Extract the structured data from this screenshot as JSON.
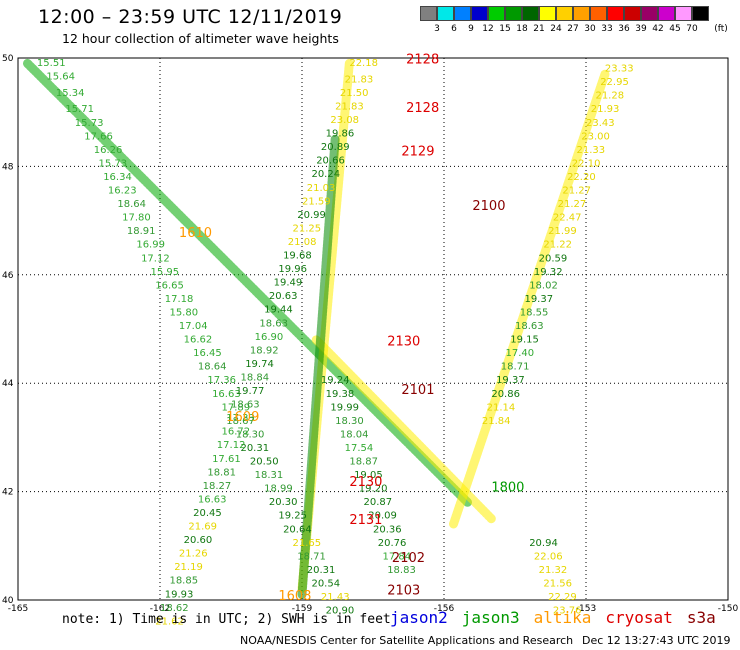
{
  "header": {
    "title": "12:00 – 23:59 UTC 12/11/2019",
    "subtitle": "12 hour collection of altimeter wave heights"
  },
  "colorbar": {
    "unit_label": "(ft)",
    "levels": [
      "3",
      "6",
      "9",
      "12",
      "15",
      "18",
      "21",
      "24",
      "27",
      "30",
      "33",
      "36",
      "39",
      "42",
      "45",
      "70"
    ],
    "colors": [
      "#808080",
      "#00e8e8",
      "#0080ff",
      "#0000cc",
      "#00cc00",
      "#009900",
      "#006600",
      "#ffff00",
      "#ffd000",
      "#ffa000",
      "#ff6000",
      "#ff0000",
      "#cc0000",
      "#990066",
      "#cc00cc",
      "#ff99ff",
      "#000000"
    ]
  },
  "chart_data": {
    "type": "scatter",
    "xlim": [
      -165,
      -150
    ],
    "ylim": [
      40,
      50
    ],
    "x_ticks": [
      "-165",
      "-162",
      "-159",
      "-156",
      "-153",
      "-150"
    ],
    "y_ticks": [
      "40",
      "42",
      "44",
      "46",
      "48",
      "50"
    ],
    "tracks": [
      {
        "satellite": "jason3",
        "lon_start": -164.8,
        "lat_start": 49.9,
        "lon_end": -155.5,
        "lat_end": 41.8,
        "color": "#00aa00"
      },
      {
        "satellite": "altika",
        "lon_start": -158.7,
        "lat_start": 44.8,
        "lon_end": -155.0,
        "lat_end": 41.5,
        "color": "#ffee00"
      },
      {
        "satellite": "altika",
        "lon_start": -152.6,
        "lat_start": 49.7,
        "lon_end": -155.8,
        "lat_end": 41.4,
        "color": "#ffee00"
      },
      {
        "satellite": "altika",
        "lon_start": -158.0,
        "lat_start": 49.9,
        "lon_end": -159.0,
        "lat_end": 40.2,
        "color": "#ffee00"
      },
      {
        "satellite": "jason3",
        "lon_start": -158.3,
        "lat_start": 48.5,
        "lon_end": -159.0,
        "lat_end": 40.1,
        "color": "#008800"
      }
    ],
    "swh_labels": [
      {
        "lon": -164.6,
        "lat": 49.85,
        "text": "15.51",
        "color": "#33aa33"
      },
      {
        "lon": -164.4,
        "lat": 49.6,
        "text": "15.64",
        "color": "#33aa33"
      },
      {
        "lon": -164.2,
        "lat": 49.3,
        "text": "15.34",
        "color": "#33aa33"
      },
      {
        "lon": -164.0,
        "lat": 49.0,
        "text": "15.71",
        "color": "#33aa33"
      },
      {
        "lon": -163.8,
        "lat": 48.75,
        "text": "15.73",
        "color": "#33aa33"
      },
      {
        "lon": -163.6,
        "lat": 48.5,
        "text": "17.66",
        "color": "#33aa33"
      },
      {
        "lon": -163.4,
        "lat": 48.25,
        "text": "16.26",
        "color": "#33aa33"
      },
      {
        "lon": -163.3,
        "lat": 48.0,
        "text": "15.73",
        "color": "#33aa33"
      },
      {
        "lon": -163.2,
        "lat": 47.75,
        "text": "16.34",
        "color": "#33aa33"
      },
      {
        "lon": -163.1,
        "lat": 47.5,
        "text": "16.23",
        "color": "#33aa33"
      },
      {
        "lon": -162.9,
        "lat": 47.25,
        "text": "18.64",
        "color": "#339933"
      },
      {
        "lon": -162.8,
        "lat": 47.0,
        "text": "17.80",
        "color": "#33aa33"
      },
      {
        "lon": -162.7,
        "lat": 46.75,
        "text": "18.91",
        "color": "#339933"
      },
      {
        "lon": -162.5,
        "lat": 46.5,
        "text": "16.99",
        "color": "#33aa33"
      },
      {
        "lon": -162.4,
        "lat": 46.25,
        "text": "17.12",
        "color": "#33aa33"
      },
      {
        "lon": -162.2,
        "lat": 46.0,
        "text": "15.95",
        "color": "#33aa33"
      },
      {
        "lon": -162.1,
        "lat": 45.75,
        "text": "16.65",
        "color": "#33aa33"
      },
      {
        "lon": -161.9,
        "lat": 45.5,
        "text": "17.18",
        "color": "#33aa33"
      },
      {
        "lon": -161.8,
        "lat": 45.25,
        "text": "15.80",
        "color": "#33aa33"
      },
      {
        "lon": -161.6,
        "lat": 45.0,
        "text": "17.04",
        "color": "#33aa33"
      },
      {
        "lon": -161.5,
        "lat": 44.75,
        "text": "16.62",
        "color": "#33aa33"
      },
      {
        "lon": -161.3,
        "lat": 44.5,
        "text": "16.45",
        "color": "#33aa33"
      },
      {
        "lon": -161.2,
        "lat": 44.25,
        "text": "18.64",
        "color": "#339933"
      },
      {
        "lon": -161.0,
        "lat": 44.0,
        "text": "17.36",
        "color": "#33aa33"
      },
      {
        "lon": -160.9,
        "lat": 43.75,
        "text": "16.63",
        "color": "#33aa33"
      },
      {
        "lon": -160.7,
        "lat": 43.5,
        "text": "17.89",
        "color": "#33aa33"
      },
      {
        "lon": -160.6,
        "lat": 43.25,
        "text": "18.67",
        "color": "#339933"
      },
      {
        "lon": -160.4,
        "lat": 43.0,
        "text": "18.30",
        "color": "#339933"
      },
      {
        "lon": -160.3,
        "lat": 42.75,
        "text": "20.31",
        "color": "#117711"
      },
      {
        "lon": -160.1,
        "lat": 42.5,
        "text": "20.50",
        "color": "#117711"
      },
      {
        "lon": -160.0,
        "lat": 42.25,
        "text": "18.31",
        "color": "#339933"
      },
      {
        "lon": -159.8,
        "lat": 42.0,
        "text": "18.99",
        "color": "#339933"
      },
      {
        "lon": -159.7,
        "lat": 41.75,
        "text": "20.30",
        "color": "#117711"
      },
      {
        "lon": -159.5,
        "lat": 41.5,
        "text": "19.25",
        "color": "#117711"
      },
      {
        "lon": -159.4,
        "lat": 41.25,
        "text": "20.64",
        "color": "#117711"
      },
      {
        "lon": -159.2,
        "lat": 41.0,
        "text": "21.65",
        "color": "#e6d600"
      },
      {
        "lon": -159.1,
        "lat": 40.75,
        "text": "18.71",
        "color": "#339933"
      },
      {
        "lon": -158.9,
        "lat": 40.5,
        "text": "20.31",
        "color": "#117711"
      },
      {
        "lon": -158.8,
        "lat": 40.25,
        "text": "20.54",
        "color": "#117711"
      },
      {
        "lon": -158.6,
        "lat": 40.0,
        "text": "21.43",
        "color": "#e6d600"
      },
      {
        "lon": -158.5,
        "lat": 39.75,
        "text": "20.90",
        "color": "#117711"
      },
      {
        "lon": -158.0,
        "lat": 49.85,
        "text": "22.18",
        "color": "#e6d600"
      },
      {
        "lon": -158.1,
        "lat": 49.55,
        "text": "21.83",
        "color": "#e6d600"
      },
      {
        "lon": -158.2,
        "lat": 49.3,
        "text": "21.50",
        "color": "#e6d600"
      },
      {
        "lon": -158.3,
        "lat": 49.05,
        "text": "21.83",
        "color": "#e6d600"
      },
      {
        "lon": -158.4,
        "lat": 48.8,
        "text": "23.08",
        "color": "#e6d600"
      },
      {
        "lon": -158.5,
        "lat": 48.55,
        "text": "19.86",
        "color": "#117711"
      },
      {
        "lon": -158.6,
        "lat": 48.3,
        "text": "20.89",
        "color": "#117711"
      },
      {
        "lon": -158.7,
        "lat": 48.05,
        "text": "20.66",
        "color": "#117711"
      },
      {
        "lon": -158.8,
        "lat": 47.8,
        "text": "20.24",
        "color": "#117711"
      },
      {
        "lon": -158.9,
        "lat": 47.55,
        "text": "21.03",
        "color": "#e6d600"
      },
      {
        "lon": -159.0,
        "lat": 47.3,
        "text": "21.59",
        "color": "#e6d600"
      },
      {
        "lon": -159.1,
        "lat": 47.05,
        "text": "20.99",
        "color": "#117711"
      },
      {
        "lon": -159.2,
        "lat": 46.8,
        "text": "21.25",
        "color": "#e6d600"
      },
      {
        "lon": -159.3,
        "lat": 46.55,
        "text": "21.08",
        "color": "#e6d600"
      },
      {
        "lon": -159.4,
        "lat": 46.3,
        "text": "19.68",
        "color": "#117711"
      },
      {
        "lon": -159.5,
        "lat": 46.05,
        "text": "19.96",
        "color": "#117711"
      },
      {
        "lon": -159.6,
        "lat": 45.8,
        "text": "19.49",
        "color": "#117711"
      },
      {
        "lon": -159.7,
        "lat": 45.55,
        "text": "20.63",
        "color": "#117711"
      },
      {
        "lon": -159.8,
        "lat": 45.3,
        "text": "19.44",
        "color": "#117711"
      },
      {
        "lon": -159.9,
        "lat": 45.05,
        "text": "18.63",
        "color": "#339933"
      },
      {
        "lon": -160.0,
        "lat": 44.8,
        "text": "16.90",
        "color": "#33aa33"
      },
      {
        "lon": -160.1,
        "lat": 44.55,
        "text": "18.92",
        "color": "#339933"
      },
      {
        "lon": -160.2,
        "lat": 44.3,
        "text": "19.74",
        "color": "#117711"
      },
      {
        "lon": -160.3,
        "lat": 44.05,
        "text": "18.84",
        "color": "#339933"
      },
      {
        "lon": -160.4,
        "lat": 43.8,
        "text": "19.77",
        "color": "#117711"
      },
      {
        "lon": -160.5,
        "lat": 43.55,
        "text": "18.63",
        "color": "#339933"
      },
      {
        "lon": -160.6,
        "lat": 43.3,
        "text": "17.33",
        "color": "#33aa33"
      },
      {
        "lon": -160.7,
        "lat": 43.05,
        "text": "16.72",
        "color": "#33aa33"
      },
      {
        "lon": -160.8,
        "lat": 42.8,
        "text": "17.12",
        "color": "#33aa33"
      },
      {
        "lon": -160.9,
        "lat": 42.55,
        "text": "17.61",
        "color": "#33aa33"
      },
      {
        "lon": -161.0,
        "lat": 42.3,
        "text": "18.81",
        "color": "#339933"
      },
      {
        "lon": -161.1,
        "lat": 42.05,
        "text": "18.27",
        "color": "#339933"
      },
      {
        "lon": -161.2,
        "lat": 41.8,
        "text": "16.63",
        "color": "#33aa33"
      },
      {
        "lon": -161.3,
        "lat": 41.55,
        "text": "20.45",
        "color": "#117711"
      },
      {
        "lon": -161.4,
        "lat": 41.3,
        "text": "21.69",
        "color": "#e6d600"
      },
      {
        "lon": -161.5,
        "lat": 41.05,
        "text": "20.60",
        "color": "#117711"
      },
      {
        "lon": -161.6,
        "lat": 40.8,
        "text": "21.26",
        "color": "#e6d600"
      },
      {
        "lon": -161.7,
        "lat": 40.55,
        "text": "21.19",
        "color": "#e6d600"
      },
      {
        "lon": -161.8,
        "lat": 40.3,
        "text": "18.85",
        "color": "#339933"
      },
      {
        "lon": -161.9,
        "lat": 40.05,
        "text": "19.93",
        "color": "#117711"
      },
      {
        "lon": -162.0,
        "lat": 39.8,
        "text": "18.62",
        "color": "#339933"
      },
      {
        "lon": -162.1,
        "lat": 39.55,
        "text": "21.62",
        "color": "#e6d600"
      },
      {
        "lon": -158.6,
        "lat": 44.0,
        "text": "19.24",
        "color": "#117711"
      },
      {
        "lon": -158.5,
        "lat": 43.75,
        "text": "19.38",
        "color": "#117711"
      },
      {
        "lon": -158.4,
        "lat": 43.5,
        "text": "19.99",
        "color": "#117711"
      },
      {
        "lon": -158.3,
        "lat": 43.25,
        "text": "18.30",
        "color": "#339933"
      },
      {
        "lon": -158.2,
        "lat": 43.0,
        "text": "18.04",
        "color": "#339933"
      },
      {
        "lon": -158.1,
        "lat": 42.75,
        "text": "17.54",
        "color": "#33aa33"
      },
      {
        "lon": -158.0,
        "lat": 42.5,
        "text": "18.87",
        "color": "#339933"
      },
      {
        "lon": -157.9,
        "lat": 42.25,
        "text": "19.05",
        "color": "#117711"
      },
      {
        "lon": -157.8,
        "lat": 42.0,
        "text": "19.20",
        "color": "#117711"
      },
      {
        "lon": -157.7,
        "lat": 41.75,
        "text": "20.87",
        "color": "#117711"
      },
      {
        "lon": -157.6,
        "lat": 41.5,
        "text": "20.09",
        "color": "#117711"
      },
      {
        "lon": -157.5,
        "lat": 41.25,
        "text": "20.36",
        "color": "#117711"
      },
      {
        "lon": -157.4,
        "lat": 41.0,
        "text": "20.76",
        "color": "#117711"
      },
      {
        "lon": -157.3,
        "lat": 40.75,
        "text": "17.84",
        "color": "#33aa33"
      },
      {
        "lon": -157.2,
        "lat": 40.5,
        "text": "18.83",
        "color": "#339933"
      },
      {
        "lon": -152.6,
        "lat": 49.75,
        "text": "23.33",
        "color": "#e6d600"
      },
      {
        "lon": -152.7,
        "lat": 49.5,
        "text": "22.95",
        "color": "#e6d600"
      },
      {
        "lon": -152.8,
        "lat": 49.25,
        "text": "21.28",
        "color": "#e6d600"
      },
      {
        "lon": -152.9,
        "lat": 49.0,
        "text": "21.93",
        "color": "#e6d600"
      },
      {
        "lon": -153.0,
        "lat": 48.75,
        "text": "23.43",
        "color": "#e6d600"
      },
      {
        "lon": -153.1,
        "lat": 48.5,
        "text": "23.00",
        "color": "#e6d600"
      },
      {
        "lon": -153.2,
        "lat": 48.25,
        "text": "21.33",
        "color": "#e6d600"
      },
      {
        "lon": -153.3,
        "lat": 48.0,
        "text": "22.10",
        "color": "#e6d600"
      },
      {
        "lon": -153.4,
        "lat": 47.75,
        "text": "22.20",
        "color": "#e6d600"
      },
      {
        "lon": -153.5,
        "lat": 47.5,
        "text": "21.27",
        "color": "#e6d600"
      },
      {
        "lon": -153.6,
        "lat": 47.25,
        "text": "21.27",
        "color": "#e6d600"
      },
      {
        "lon": -153.7,
        "lat": 47.0,
        "text": "22.47",
        "color": "#e6d600"
      },
      {
        "lon": -153.8,
        "lat": 46.75,
        "text": "21.99",
        "color": "#e6d600"
      },
      {
        "lon": -153.9,
        "lat": 46.5,
        "text": "21.22",
        "color": "#e6d600"
      },
      {
        "lon": -154.0,
        "lat": 46.25,
        "text": "20.59",
        "color": "#117711"
      },
      {
        "lon": -154.1,
        "lat": 46.0,
        "text": "19.32",
        "color": "#117711"
      },
      {
        "lon": -154.2,
        "lat": 45.75,
        "text": "18.02",
        "color": "#339933"
      },
      {
        "lon": -154.3,
        "lat": 45.5,
        "text": "19.37",
        "color": "#117711"
      },
      {
        "lon": -154.4,
        "lat": 45.25,
        "text": "18.55",
        "color": "#339933"
      },
      {
        "lon": -154.5,
        "lat": 45.0,
        "text": "18.63",
        "color": "#339933"
      },
      {
        "lon": -154.6,
        "lat": 44.75,
        "text": "19.15",
        "color": "#117711"
      },
      {
        "lon": -154.7,
        "lat": 44.5,
        "text": "17.40",
        "color": "#33aa33"
      },
      {
        "lon": -154.8,
        "lat": 44.25,
        "text": "18.71",
        "color": "#339933"
      },
      {
        "lon": -154.9,
        "lat": 44.0,
        "text": "19.37",
        "color": "#117711"
      },
      {
        "lon": -155.0,
        "lat": 43.75,
        "text": "20.86",
        "color": "#117711"
      },
      {
        "lon": -155.1,
        "lat": 43.5,
        "text": "21.14",
        "color": "#e6d600"
      },
      {
        "lon": -155.2,
        "lat": 43.25,
        "text": "21.84",
        "color": "#e6d600"
      },
      {
        "lon": -154.2,
        "lat": 41.0,
        "text": "20.94",
        "color": "#117711"
      },
      {
        "lon": -154.1,
        "lat": 40.75,
        "text": "22.06",
        "color": "#e6d600"
      },
      {
        "lon": -154.0,
        "lat": 40.5,
        "text": "21.32",
        "color": "#e6d600"
      },
      {
        "lon": -153.9,
        "lat": 40.25,
        "text": "21.56",
        "color": "#e6d600"
      },
      {
        "lon": -153.8,
        "lat": 40.0,
        "text": "22.29",
        "color": "#e6d600"
      },
      {
        "lon": -153.7,
        "lat": 39.75,
        "text": "23.76",
        "color": "#e6d600"
      }
    ],
    "time_labels": [
      {
        "lon": -156.8,
        "lat": 49.9,
        "text": "2128",
        "color": "#dd0000"
      },
      {
        "lon": -156.8,
        "lat": 49.0,
        "text": "2128",
        "color": "#dd0000"
      },
      {
        "lon": -156.9,
        "lat": 48.2,
        "text": "2129",
        "color": "#dd0000"
      },
      {
        "lon": -157.2,
        "lat": 44.7,
        "text": "2130",
        "color": "#dd0000"
      },
      {
        "lon": -158.0,
        "lat": 42.1,
        "text": "2130",
        "color": "#dd0000"
      },
      {
        "lon": -158.0,
        "lat": 41.4,
        "text": "2131",
        "color": "#dd0000"
      },
      {
        "lon": -155.4,
        "lat": 47.2,
        "text": "2100",
        "color": "#880000"
      },
      {
        "lon": -156.9,
        "lat": 43.8,
        "text": "2101",
        "color": "#880000"
      },
      {
        "lon": -157.1,
        "lat": 40.7,
        "text": "2102",
        "color": "#880000"
      },
      {
        "lon": -157.2,
        "lat": 40.1,
        "text": "2103",
        "color": "#880000"
      },
      {
        "lon": -161.6,
        "lat": 46.7,
        "text": "1610",
        "color": "#ff9900"
      },
      {
        "lon": -160.6,
        "lat": 43.3,
        "text": "1609",
        "color": "#ff9900"
      },
      {
        "lon": -159.5,
        "lat": 40.0,
        "text": "1608",
        "color": "#ff9900"
      },
      {
        "lon": -155.0,
        "lat": 42.0,
        "text": "1800",
        "color": "#009900"
      }
    ]
  },
  "footer": {
    "note": "note: 1) Time is in UTC; 2) SWH is in feet",
    "satellites": [
      {
        "name": "jason2",
        "color": "#0000dd"
      },
      {
        "name": "jason3",
        "color": "#009900"
      },
      {
        "name": "altika",
        "color": "#ff9900"
      },
      {
        "name": "cryosat",
        "color": "#dd0000"
      },
      {
        "name": "s3a",
        "color": "#880000"
      }
    ],
    "credit": "NOAA/NESDIS Center for Satellite Applications and Research",
    "timestamp": "Dec 12 13:27:43 UTC 2019"
  }
}
